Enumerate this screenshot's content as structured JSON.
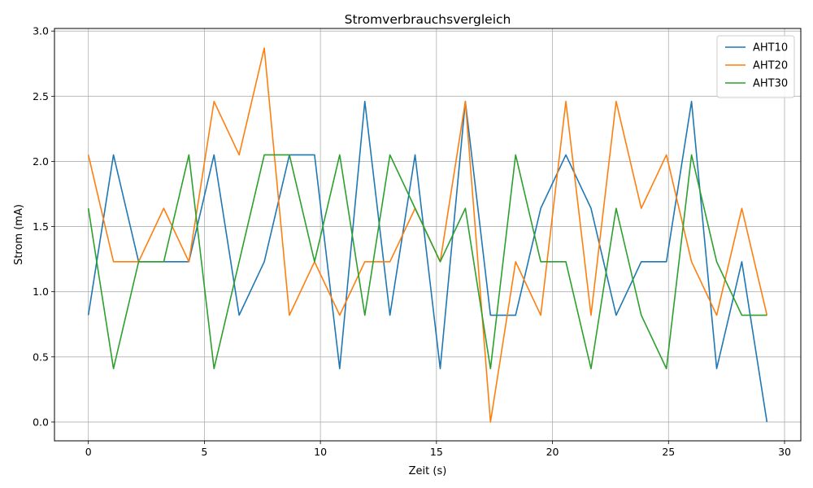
{
  "chart_data": {
    "type": "line",
    "title": "Stromverbrauchsvergleich",
    "xlabel": "Zeit (s)",
    "ylabel": "Strom (mA)",
    "xlim": [
      -1.46,
      30.7
    ],
    "ylim": [
      -0.144,
      3.02
    ],
    "xticks": [
      0,
      5,
      10,
      15,
      20,
      25,
      30
    ],
    "xtick_labels": [
      "0",
      "5",
      "10",
      "15",
      "20",
      "25",
      "30"
    ],
    "yticks": [
      0.0,
      0.5,
      1.0,
      1.5,
      2.0,
      2.5,
      3.0
    ],
    "ytick_labels": [
      "0.0",
      "0.5",
      "1.0",
      "1.5",
      "2.0",
      "2.5",
      "3.0"
    ],
    "grid": true,
    "legend_position": "top-right",
    "x": [
      0,
      1.083,
      2.166,
      3.249,
      4.332,
      5.415,
      6.498,
      7.581,
      8.664,
      9.747,
      10.83,
      11.913,
      12.996,
      14.079,
      15.162,
      16.245,
      17.328,
      18.411,
      19.494,
      20.577,
      21.66,
      22.743,
      23.826,
      24.909,
      25.992,
      27.075,
      28.158,
      29.241
    ],
    "series": [
      {
        "name": "AHT10",
        "color": "#1f77b4",
        "values": [
          0.82,
          2.05,
          1.23,
          1.23,
          1.23,
          2.05,
          0.82,
          1.23,
          2.05,
          2.05,
          0.41,
          2.46,
          0.82,
          2.05,
          0.41,
          2.46,
          0.82,
          0.82,
          1.64,
          2.05,
          1.64,
          0.82,
          1.23,
          1.23,
          2.46,
          0.41,
          1.23,
          0.0
        ]
      },
      {
        "name": "AHT20",
        "color": "#ff7f0e",
        "values": [
          2.05,
          1.23,
          1.23,
          1.64,
          1.23,
          2.46,
          2.05,
          2.87,
          0.82,
          1.23,
          0.82,
          1.23,
          1.23,
          1.64,
          1.23,
          2.46,
          0.0,
          1.23,
          0.82,
          2.46,
          0.82,
          2.46,
          1.64,
          2.05,
          1.23,
          0.82,
          1.64,
          0.82
        ]
      },
      {
        "name": "AHT30",
        "color": "#2ca02c",
        "values": [
          1.64,
          0.41,
          1.23,
          1.23,
          2.05,
          0.41,
          1.23,
          2.05,
          2.05,
          1.23,
          2.05,
          0.82,
          2.05,
          1.64,
          1.23,
          1.64,
          0.41,
          2.05,
          1.23,
          1.23,
          0.41,
          1.64,
          0.82,
          0.41,
          2.05,
          1.23,
          0.82,
          0.82
        ]
      }
    ]
  }
}
